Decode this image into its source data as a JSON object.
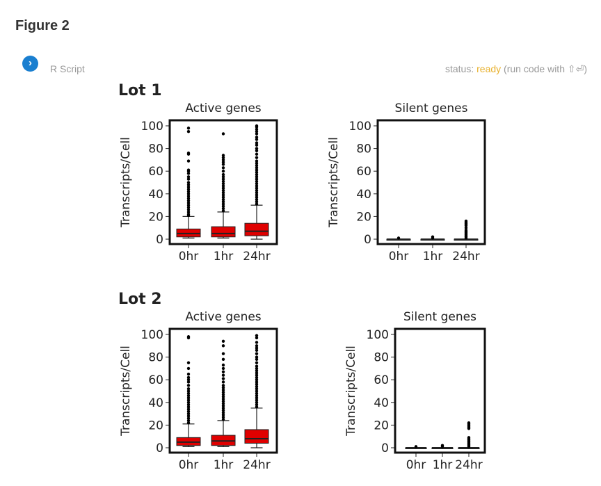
{
  "header": {
    "figure_title": "Figure 2",
    "run_icon": "chevron-right-icon",
    "script_label": "R Script",
    "status_prefix": "status:",
    "status_value": "ready",
    "status_suffix": "(run code with ⇧⏎)",
    "status_color": "#e8b12e",
    "button_color": "#1a7fd0"
  },
  "chart_data": [
    {
      "type": "box",
      "group": "Lot 1",
      "title": "Active genes",
      "ylabel": "Transcripts/Cell",
      "ylim": [
        0,
        100
      ],
      "yticks": [
        0,
        20,
        40,
        60,
        80,
        100
      ],
      "categories": [
        "0hr",
        "1hr",
        "24hr"
      ],
      "box_color": "#e00000",
      "boxes": [
        {
          "whislo": 1,
          "q1": 2,
          "med": 5,
          "q3": 9,
          "whishi": 20,
          "outliers": [
            21,
            22,
            24,
            26,
            28,
            30,
            32,
            34,
            36,
            38,
            40,
            42,
            44,
            46,
            48,
            50,
            53,
            55,
            58,
            60,
            61,
            69,
            75,
            76,
            95,
            98
          ]
        },
        {
          "whislo": 1,
          "q1": 2,
          "med": 5,
          "q3": 11,
          "whishi": 24,
          "outliers": [
            25,
            27,
            29,
            31,
            33,
            35,
            37,
            39,
            41,
            43,
            45,
            47,
            49,
            51,
            53,
            55,
            57,
            60,
            63,
            66,
            68,
            70,
            72,
            74,
            93
          ]
        },
        {
          "whislo": 0,
          "q1": 3,
          "med": 7,
          "q3": 14,
          "whishi": 30,
          "outliers": [
            31,
            33,
            35,
            37,
            39,
            41,
            43,
            45,
            47,
            49,
            51,
            53,
            55,
            57,
            59,
            61,
            63,
            65,
            67,
            69,
            72,
            75,
            78,
            80,
            83,
            85,
            88,
            90,
            93,
            95,
            97,
            99,
            100
          ]
        }
      ]
    },
    {
      "type": "box",
      "group": "Lot 1",
      "title": "Silent genes",
      "ylabel": "Transcripts/Cell",
      "ylim": [
        0,
        100
      ],
      "yticks": [
        0,
        20,
        40,
        60,
        80,
        100
      ],
      "categories": [
        "0hr",
        "1hr",
        "24hr"
      ],
      "box_color": "#e00000",
      "boxes": [
        {
          "whislo": 0,
          "q1": 0,
          "med": 0,
          "q3": 0,
          "whishi": 0,
          "outliers": [
            1
          ]
        },
        {
          "whislo": 0,
          "q1": 0,
          "med": 0,
          "q3": 0,
          "whishi": 0,
          "outliers": [
            1,
            2
          ]
        },
        {
          "whislo": 0,
          "q1": 0,
          "med": 0,
          "q3": 0,
          "whishi": 0,
          "outliers": [
            1,
            2,
            3,
            4,
            5,
            6,
            7,
            8,
            10,
            12,
            13,
            14,
            15,
            16
          ]
        }
      ]
    },
    {
      "type": "box",
      "group": "Lot 2",
      "title": "Active genes",
      "ylabel": "Transcripts/Cell",
      "ylim": [
        0,
        100
      ],
      "yticks": [
        0,
        20,
        40,
        60,
        80,
        100
      ],
      "categories": [
        "0hr",
        "1hr",
        "24hr"
      ],
      "box_color": "#e00000",
      "boxes": [
        {
          "whislo": 1,
          "q1": 2,
          "med": 5,
          "q3": 9,
          "whishi": 21,
          "outliers": [
            22,
            24,
            26,
            28,
            30,
            32,
            34,
            36,
            38,
            40,
            42,
            44,
            46,
            48,
            50,
            52,
            55,
            58,
            60,
            62,
            65,
            70,
            75,
            97,
            98
          ]
        },
        {
          "whislo": 1,
          "q1": 2,
          "med": 6,
          "q3": 11,
          "whishi": 24,
          "outliers": [
            25,
            27,
            29,
            31,
            33,
            35,
            37,
            39,
            41,
            43,
            45,
            47,
            49,
            51,
            53,
            55,
            58,
            61,
            64,
            67,
            70,
            73,
            78,
            83,
            90,
            94
          ]
        },
        {
          "whislo": 0,
          "q1": 4,
          "med": 8,
          "q3": 16,
          "whishi": 35,
          "outliers": [
            36,
            38,
            40,
            42,
            44,
            46,
            48,
            50,
            52,
            54,
            56,
            58,
            60,
            62,
            64,
            66,
            68,
            70,
            72,
            75,
            78,
            80,
            83,
            86,
            88,
            90,
            93,
            97,
            99
          ]
        }
      ]
    },
    {
      "type": "box",
      "group": "Lot 2",
      "title": "Silent genes",
      "ylabel": "Transcripts/Cell",
      "ylim": [
        0,
        100
      ],
      "yticks": [
        0,
        20,
        40,
        60,
        80,
        100
      ],
      "categories": [
        "0hr",
        "1hr",
        "24hr"
      ],
      "box_color": "#e00000",
      "boxes": [
        {
          "whislo": 0,
          "q1": 0,
          "med": 0,
          "q3": 0,
          "whishi": 0,
          "outliers": [
            1
          ]
        },
        {
          "whislo": 0,
          "q1": 0,
          "med": 0,
          "q3": 0,
          "whishi": 0,
          "outliers": [
            1,
            2
          ]
        },
        {
          "whislo": 0,
          "q1": 0,
          "med": 0,
          "q3": 0,
          "whishi": 0,
          "outliers": [
            1,
            2,
            3,
            4,
            5,
            6,
            7,
            8,
            9,
            17,
            18,
            19,
            20,
            21,
            22
          ]
        }
      ]
    }
  ]
}
